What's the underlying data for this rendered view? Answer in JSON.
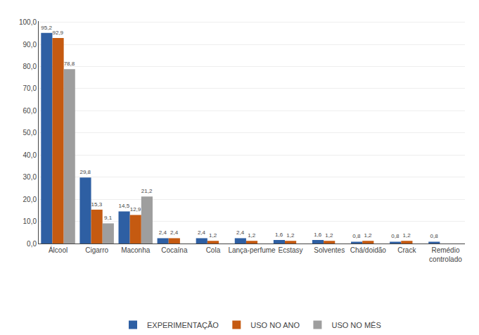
{
  "chart_data": {
    "type": "bar",
    "categories": [
      "Álcool",
      "Cigarro",
      "Maconha",
      "Cocaína",
      "Cola",
      "Lança-perfume",
      "Ecstasy",
      "Solventes",
      "Chá/doidão",
      "Crack",
      "Remédio\ncontrolado"
    ],
    "series": [
      {
        "name": "EXPERIMENTAÇÃO",
        "color": "#2e5fa3",
        "values": [
          95.2,
          29.8,
          14.5,
          2.4,
          2.4,
          2.4,
          1.6,
          1.6,
          0.8,
          0.8,
          0.8
        ],
        "value_labels": [
          "95,2",
          "29,8",
          "14,5",
          "2,4",
          "2,4",
          "2,4",
          "1,6",
          "1,6",
          "0,8",
          "0,8",
          "0,8"
        ]
      },
      {
        "name": "USO NO ANO",
        "color": "#c55a11",
        "values": [
          92.9,
          15.3,
          12.9,
          2.4,
          1.2,
          1.2,
          1.2,
          1.2,
          1.2,
          1.2,
          0.0
        ],
        "value_labels": [
          "92,9",
          "15,3",
          "12,9",
          "2,4",
          "1,2",
          "1,2",
          "1,2",
          "1,2",
          "1,2",
          "1,2",
          null
        ]
      },
      {
        "name": "USO NO MÊS",
        "color": "#9e9e9e",
        "values": [
          78.8,
          9.1,
          21.2,
          0.0,
          0.0,
          0.0,
          0.0,
          0.0,
          0.0,
          0.0,
          0.0
        ],
        "value_labels": [
          "78,8",
          "9,1",
          "21,2",
          null,
          null,
          null,
          null,
          null,
          null,
          null,
          null
        ]
      }
    ],
    "ylim": [
      0,
      100.5
    ],
    "yticks": [
      {
        "value": 0.0,
        "label": "0,0"
      },
      {
        "value": 10.0,
        "label": "10,0"
      },
      {
        "value": 20.0,
        "label": "20,0"
      },
      {
        "value": 30.0,
        "label": "30,0"
      },
      {
        "value": 40.0,
        "label": "40,0"
      },
      {
        "value": 50.0,
        "label": "50,0"
      },
      {
        "value": 60.0,
        "label": "60,0"
      },
      {
        "value": 70.0,
        "label": "70,0"
      },
      {
        "value": 80.0,
        "label": "80,0"
      },
      {
        "value": 90.0,
        "label": "90,0"
      },
      {
        "value": 100.0,
        "label": "100,0"
      }
    ],
    "grid": true,
    "legend": "bottom",
    "data_labels": true
  }
}
